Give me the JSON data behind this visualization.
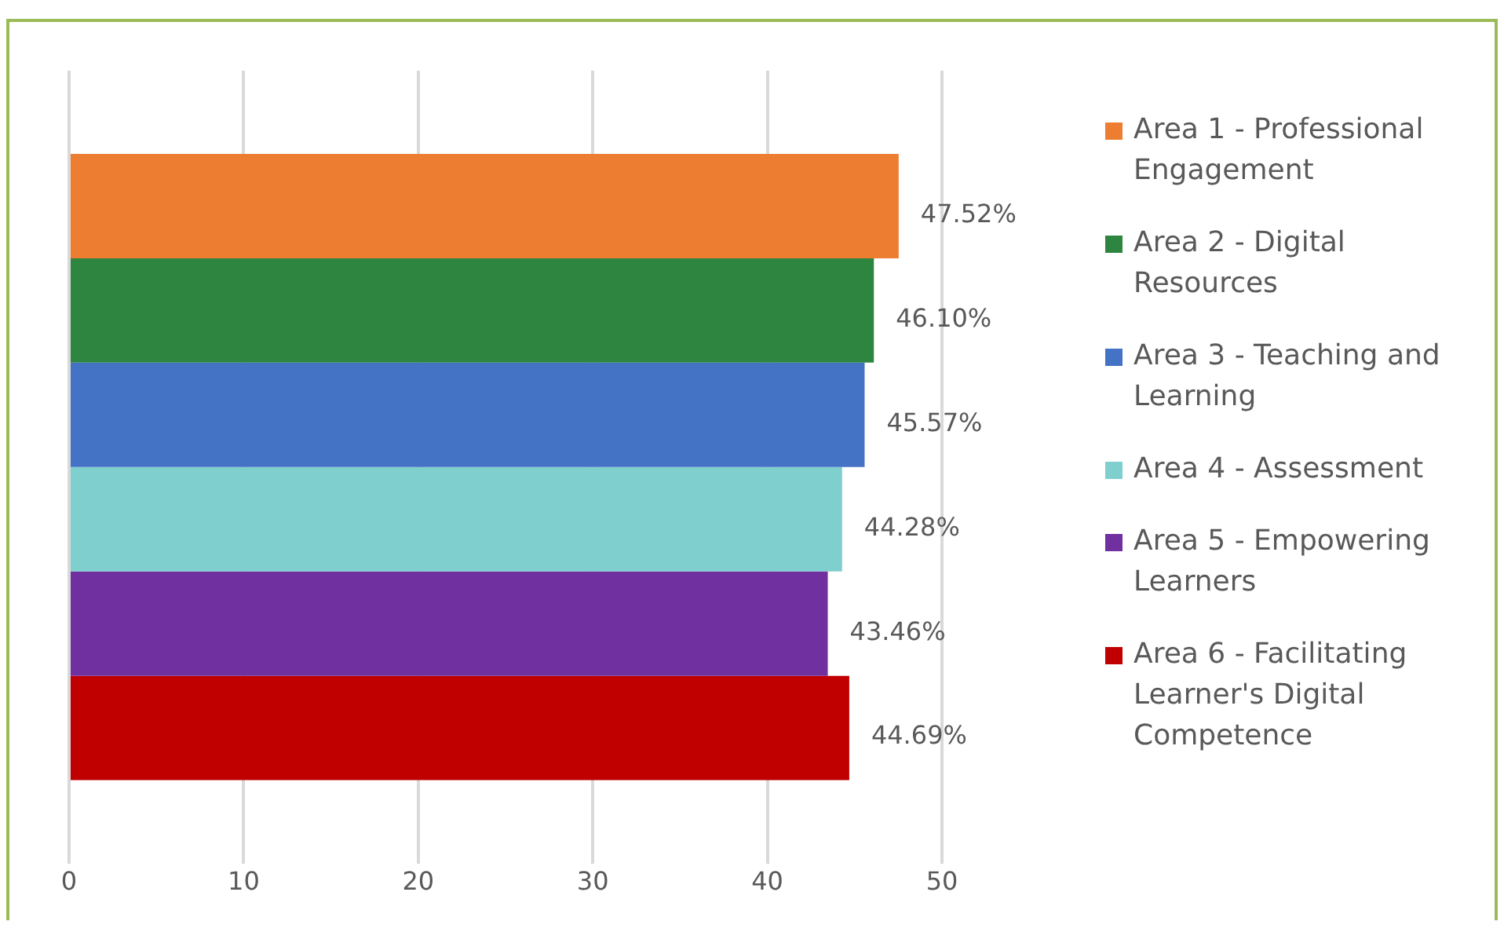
{
  "chart_data": {
    "type": "bar",
    "orientation": "horizontal",
    "categories": [
      null
    ],
    "series": [
      {
        "name": "Area 1 - Professional Engagement",
        "color": "#ed7d31",
        "values": [
          47.52
        ],
        "value_labels": [
          "47.52%"
        ]
      },
      {
        "name": "Area 2 - Digital Resources",
        "color": "#2e8540",
        "values": [
          46.1
        ],
        "value_labels": [
          "46.10%"
        ]
      },
      {
        "name": "Area 3 - Teaching and Learning",
        "color": "#4472c4",
        "values": [
          45.57
        ],
        "value_labels": [
          "45.57%"
        ]
      },
      {
        "name": "Area 4 - Assessment",
        "color": "#7fcfcf",
        "values": [
          44.28
        ],
        "value_labels": [
          "44.28%"
        ]
      },
      {
        "name": "Area 5 - Empowering Learners",
        "color": "#7030a0",
        "values": [
          43.46
        ],
        "value_labels": [
          "43.46%"
        ]
      },
      {
        "name": "Area 6 - Facilitating Learner's Digital Competence",
        "color": "#c00000",
        "values": [
          44.69
        ],
        "value_labels": [
          "44.69%"
        ]
      }
    ],
    "xlim": [
      0,
      50
    ],
    "xticks": [
      0,
      10,
      20,
      30,
      40,
      50
    ],
    "grid": "x",
    "legend": "right",
    "tick_labels": "x"
  }
}
